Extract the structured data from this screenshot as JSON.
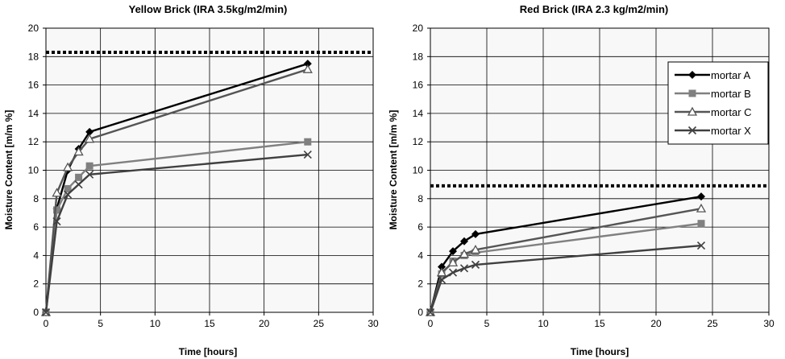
{
  "chart_data": [
    {
      "type": "line",
      "title": "Yellow Brick (IRA 3.5kg/m2/min)",
      "xlabel": "Time [hours]",
      "ylabel": "Moisture Content [m/m %]",
      "xlim": [
        0,
        30
      ],
      "ylim": [
        0,
        20
      ],
      "x_ticks": [
        "0",
        "5",
        "10",
        "15",
        "20",
        "25",
        "30"
      ],
      "y_ticks": [
        "0",
        "2",
        "4",
        "6",
        "8",
        "10",
        "12",
        "14",
        "16",
        "18",
        "20"
      ],
      "grid": true,
      "reference_line": 18.3,
      "legend": false,
      "x": [
        0,
        1,
        2,
        3,
        4,
        24
      ],
      "series": [
        {
          "name": "mortar A",
          "marker": "diamond",
          "color": "#000000",
          "values": [
            0,
            7.3,
            10.0,
            11.5,
            12.7,
            17.5
          ]
        },
        {
          "name": "mortar B",
          "marker": "square",
          "color": "#808080",
          "values": [
            0,
            7.2,
            8.7,
            9.5,
            10.3,
            12.0
          ]
        },
        {
          "name": "mortar C",
          "marker": "triangle",
          "color": "#555555",
          "values": [
            0,
            8.4,
            10.2,
            11.3,
            12.2,
            17.1
          ]
        },
        {
          "name": "mortar X",
          "marker": "x",
          "color": "#404040",
          "values": [
            0,
            6.4,
            8.3,
            9.0,
            9.7,
            11.1
          ]
        }
      ]
    },
    {
      "type": "line",
      "title": "Red Brick  (IRA 2.3 kg/m2/min)",
      "xlabel": "Time [hours]",
      "ylabel": "Moisture Content [m/m %]",
      "xlim": [
        0,
        30
      ],
      "ylim": [
        0,
        20
      ],
      "x_ticks": [
        "0",
        "5",
        "10",
        "15",
        "20",
        "25",
        "30"
      ],
      "y_ticks": [
        "0",
        "2",
        "4",
        "6",
        "8",
        "10",
        "12",
        "14",
        "16",
        "18",
        "20"
      ],
      "grid": true,
      "reference_line": 8.9,
      "legend": true,
      "legend_position": "top-right",
      "x": [
        0,
        1,
        2,
        3,
        4,
        24
      ],
      "series": [
        {
          "name": "mortar A",
          "marker": "diamond",
          "color": "#000000",
          "values": [
            0,
            3.2,
            4.3,
            5.0,
            5.5,
            8.15
          ]
        },
        {
          "name": "mortar B",
          "marker": "square",
          "color": "#808080",
          "values": [
            0,
            2.7,
            3.6,
            4.0,
            4.2,
            6.25
          ]
        },
        {
          "name": "mortar C",
          "marker": "triangle",
          "color": "#555555",
          "values": [
            0,
            2.8,
            3.5,
            4.1,
            4.4,
            7.3
          ]
        },
        {
          "name": "mortar X",
          "marker": "x",
          "color": "#404040",
          "values": [
            0,
            2.3,
            2.8,
            3.1,
            3.35,
            4.7
          ]
        }
      ]
    }
  ]
}
